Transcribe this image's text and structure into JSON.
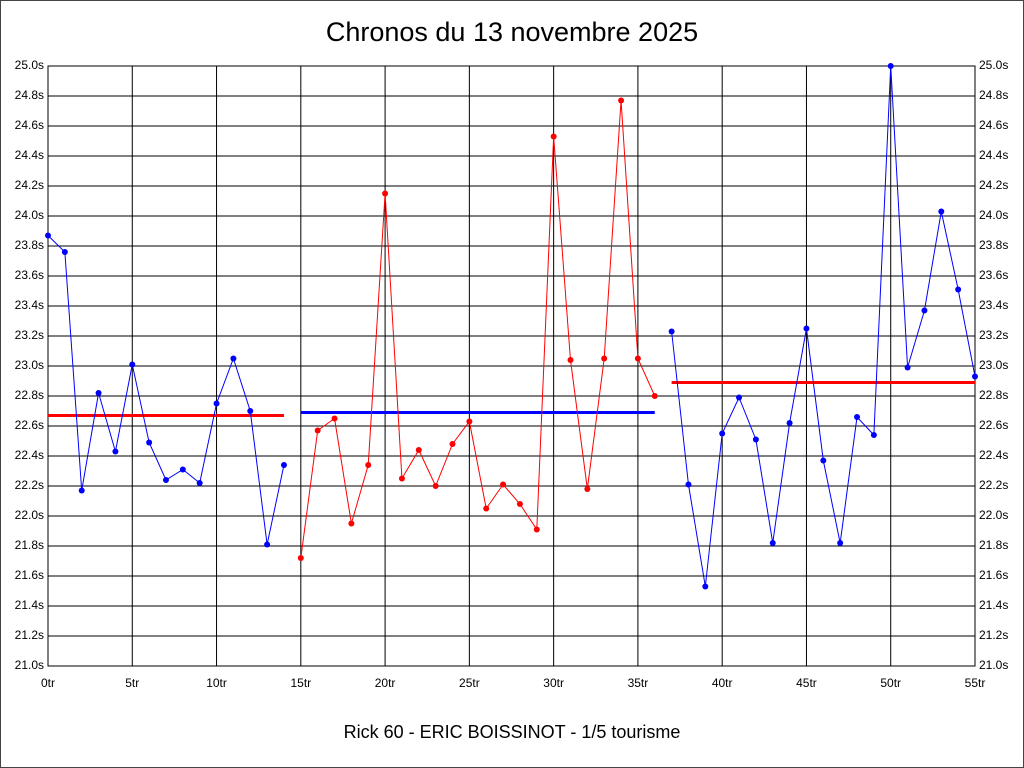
{
  "chart_data": {
    "type": "line",
    "title": "Chronos du 13 novembre 2025",
    "xlabel": "Rick 60 - ERIC BOISSINOT - 1/5 tourisme",
    "xlim": [
      0,
      55
    ],
    "xticks": [
      {
        "value": 0,
        "label": "0tr"
      },
      {
        "value": 5,
        "label": "5tr"
      },
      {
        "value": 10,
        "label": "10tr"
      },
      {
        "value": 15,
        "label": "15tr"
      },
      {
        "value": 20,
        "label": "20tr"
      },
      {
        "value": 25,
        "label": "25tr"
      },
      {
        "value": 30,
        "label": "30tr"
      },
      {
        "value": 35,
        "label": "35tr"
      },
      {
        "value": 40,
        "label": "40tr"
      },
      {
        "value": 45,
        "label": "45tr"
      },
      {
        "value": 50,
        "label": "50tr"
      },
      {
        "value": 55,
        "label": "55tr"
      }
    ],
    "ylim": [
      21,
      25
    ],
    "yticks": [
      {
        "value": 21,
        "label": "21.0s"
      },
      {
        "value": 21.2,
        "label": "21.2s"
      },
      {
        "value": 21.4,
        "label": "21.4s"
      },
      {
        "value": 21.6,
        "label": "21.6s"
      },
      {
        "value": 21.8,
        "label": "21.8s"
      },
      {
        "value": 22,
        "label": "22.0s"
      },
      {
        "value": 22.2,
        "label": "22.2s"
      },
      {
        "value": 22.4,
        "label": "22.4s"
      },
      {
        "value": 22.6,
        "label": "22.6s"
      },
      {
        "value": 22.8,
        "label": "22.8s"
      },
      {
        "value": 23,
        "label": "23.0s"
      },
      {
        "value": 23.2,
        "label": "23.2s"
      },
      {
        "value": 23.4,
        "label": "23.4s"
      },
      {
        "value": 23.6,
        "label": "23.6s"
      },
      {
        "value": 23.8,
        "label": "23.8s"
      },
      {
        "value": 24,
        "label": "24.0s"
      },
      {
        "value": 24.2,
        "label": "24.2s"
      },
      {
        "value": 24.4,
        "label": "24.4s"
      },
      {
        "value": 24.6,
        "label": "24.6s"
      },
      {
        "value": 24.8,
        "label": "24.8s"
      },
      {
        "value": 25,
        "label": "25.0s"
      }
    ],
    "grid": true,
    "series": [
      {
        "color": "#0000ff",
        "x": [
          0,
          1,
          2,
          3,
          4,
          5,
          6,
          7,
          8,
          9,
          10,
          11,
          12,
          13,
          14
        ],
        "values": [
          23.87,
          23.76,
          22.17,
          22.82,
          22.43,
          23.01,
          22.49,
          22.24,
          22.31,
          22.22,
          22.75,
          23.05,
          22.7,
          21.81,
          22.34
        ]
      },
      {
        "color": "#ff0000",
        "x": [
          15,
          16,
          17,
          18,
          19,
          20,
          21,
          22,
          23,
          24,
          25,
          26,
          27,
          28,
          29,
          30,
          31,
          32,
          33,
          34,
          35,
          36
        ],
        "values": [
          21.72,
          22.57,
          22.65,
          21.95,
          22.34,
          24.15,
          22.25,
          22.44,
          22.2,
          22.48,
          22.63,
          22.05,
          22.21,
          22.08,
          21.91,
          24.53,
          23.04,
          22.18,
          23.05,
          24.77,
          23.05,
          22.8
        ]
      },
      {
        "color": "#0000ff",
        "x": [
          37,
          38,
          39,
          40,
          41,
          42,
          43,
          44,
          45,
          46,
          47,
          48,
          49,
          50,
          51,
          52,
          53,
          54,
          55
        ],
        "values": [
          23.23,
          22.21,
          21.53,
          22.55,
          22.79,
          22.51,
          21.82,
          22.62,
          23.25,
          22.37,
          21.82,
          22.66,
          22.54,
          25.0,
          22.99,
          23.37,
          24.03,
          23.51,
          22.93
        ]
      }
    ],
    "averages": [
      {
        "color": "#ff0000",
        "x": [
          0,
          14
        ],
        "value": 22.67
      },
      {
        "color": "#0000ff",
        "x": [
          15,
          36
        ],
        "value": 22.69
      },
      {
        "color": "#ff0000",
        "x": [
          37,
          55
        ],
        "value": 22.89
      }
    ]
  }
}
